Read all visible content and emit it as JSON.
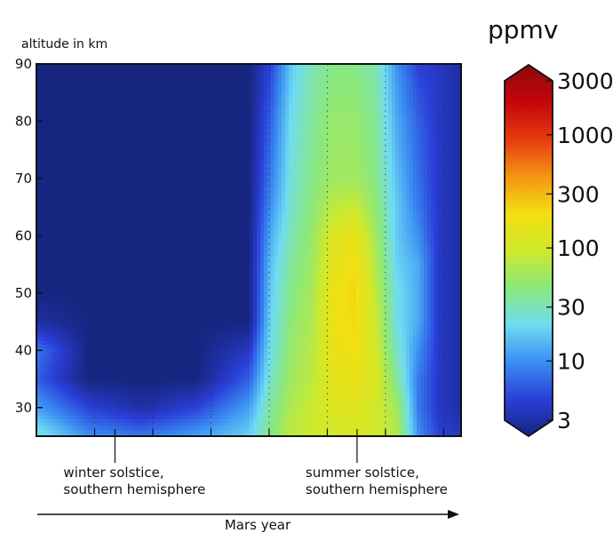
{
  "chart_data": {
    "type": "heatmap",
    "ylabel": "altitude in km",
    "xlabel": "Mars year",
    "ylim": [
      25,
      90
    ],
    "yticks": [
      30,
      40,
      50,
      60,
      70,
      80,
      90
    ],
    "x_guides_count": 7,
    "annotations": [
      {
        "id": "winter",
        "x": 0.185,
        "lines": [
          "winter solstice,",
          "southern hemisphere"
        ]
      },
      {
        "id": "summer",
        "x": 0.755,
        "lines": [
          "summer solstice,",
          "southern hemisphere"
        ]
      }
    ],
    "colorbar": {
      "title": "ppmv",
      "scale": "log",
      "min": 3,
      "max": 3000,
      "ticks": [
        3,
        10,
        30,
        100,
        300,
        1000,
        3000
      ]
    },
    "colormap": [
      "#16257f",
      "#2a3fd8",
      "#3a8ef2",
      "#6fdcf2",
      "#8ae87d",
      "#cfe92a",
      "#f3df12",
      "#f49513",
      "#e53a10",
      "#c5050a",
      "#8a0a0a"
    ],
    "field_note": "concentration (ppmv) vs season and altitude, sampled grid",
    "grid": {
      "x": [
        0.0,
        0.125,
        0.25,
        0.375,
        0.5,
        0.55,
        0.6,
        0.65,
        0.7,
        0.75,
        0.8,
        0.85,
        0.9,
        0.95,
        1.0
      ],
      "y": [
        25,
        30,
        35,
        40,
        45,
        50,
        55,
        60,
        65,
        70,
        80,
        90
      ],
      "z": [
        [
          30,
          12,
          10,
          14,
          22,
          45,
          80,
          95,
          100,
          110,
          95,
          70,
          12,
          6,
          5
        ],
        [
          14,
          6,
          4,
          6,
          14,
          38,
          70,
          90,
          120,
          130,
          100,
          60,
          10,
          5,
          4
        ],
        [
          8,
          3,
          3,
          3,
          8,
          30,
          60,
          80,
          140,
          160,
          110,
          40,
          10,
          5,
          4
        ],
        [
          10,
          3,
          3,
          3,
          5,
          25,
          55,
          75,
          160,
          180,
          100,
          30,
          12,
          5,
          4
        ],
        [
          4,
          3,
          3,
          3,
          3,
          22,
          50,
          70,
          170,
          200,
          90,
          25,
          15,
          5,
          4
        ],
        [
          3,
          3,
          3,
          3,
          3,
          20,
          45,
          65,
          170,
          210,
          80,
          25,
          15,
          5,
          4
        ],
        [
          3,
          3,
          3,
          3,
          3,
          18,
          40,
          60,
          140,
          190,
          70,
          22,
          15,
          5,
          4
        ],
        [
          3,
          3,
          3,
          3,
          3,
          15,
          35,
          55,
          120,
          150,
          60,
          20,
          12,
          5,
          4
        ],
        [
          3,
          3,
          3,
          3,
          3,
          12,
          30,
          50,
          80,
          90,
          50,
          20,
          10,
          5,
          4
        ],
        [
          3,
          3,
          3,
          3,
          3,
          10,
          28,
          45,
          60,
          60,
          45,
          18,
          9,
          5,
          4
        ],
        [
          3,
          3,
          3,
          3,
          3,
          8,
          25,
          40,
          55,
          55,
          40,
          15,
          8,
          5,
          4
        ],
        [
          3,
          3,
          3,
          3,
          3,
          6,
          20,
          35,
          45,
          45,
          35,
          12,
          6,
          5,
          4
        ]
      ]
    }
  }
}
